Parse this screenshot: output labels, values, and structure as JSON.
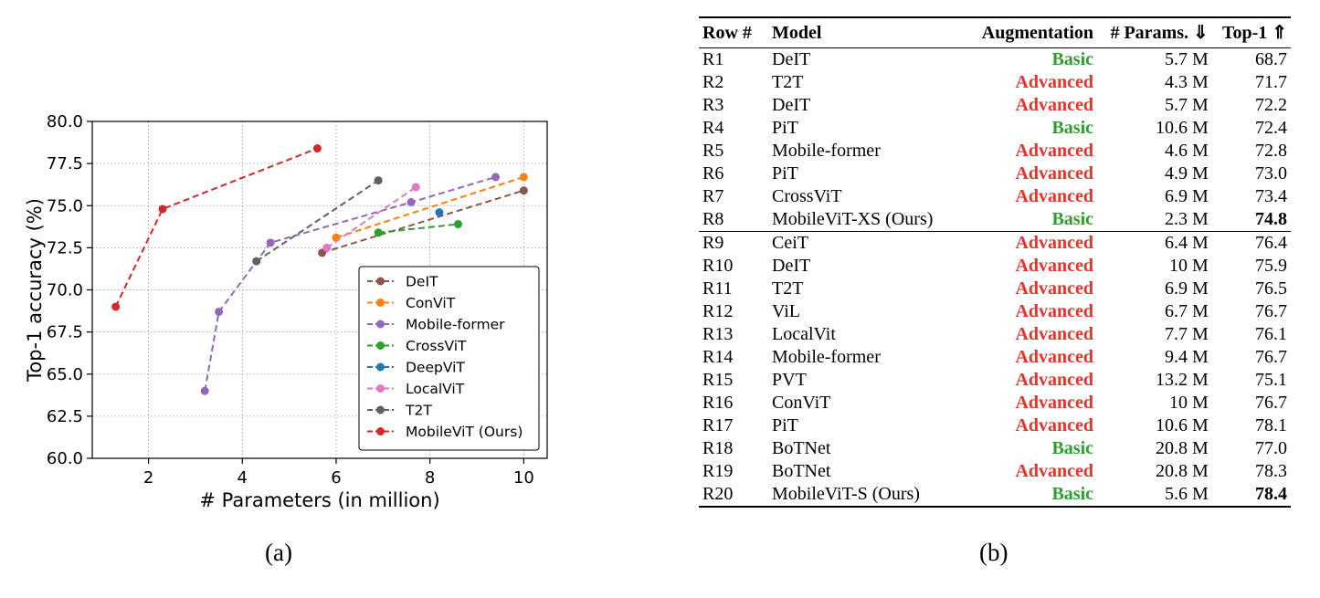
{
  "chart_data": {
    "type": "line",
    "xlabel": "# Parameters (in million)",
    "ylabel": "Top-1 accuracy (%)",
    "xlim": [
      0.8,
      10.5
    ],
    "ylim": [
      60.0,
      80.0
    ],
    "xticks": [
      2,
      4,
      6,
      8,
      10
    ],
    "yticks": [
      60.0,
      62.5,
      65.0,
      67.5,
      70.0,
      72.5,
      75.0,
      77.5,
      80.0
    ],
    "xtick_labels": [
      "2",
      "4",
      "6",
      "8",
      "10"
    ],
    "ytick_labels": [
      "60.0",
      "62.5",
      "65.0",
      "67.5",
      "70.0",
      "72.5",
      "75.0",
      "77.5",
      "80.0"
    ],
    "grid": true,
    "legend_position": "lower-right",
    "series": [
      {
        "name": "DeIT",
        "color": "#8c564b",
        "x": [
          5.7,
          10.0
        ],
        "y": [
          72.2,
          75.9
        ]
      },
      {
        "name": "ConViT",
        "color": "#ff7f0e",
        "x": [
          6.0,
          10.0
        ],
        "y": [
          73.1,
          76.7
        ]
      },
      {
        "name": "Mobile-former",
        "color": "#9467bd",
        "x": [
          3.2,
          3.5,
          4.6,
          7.6,
          9.4
        ],
        "y": [
          64.0,
          68.7,
          72.8,
          75.2,
          76.7
        ]
      },
      {
        "name": "CrossViT",
        "color": "#2ca02c",
        "x": [
          6.9,
          8.6
        ],
        "y": [
          73.4,
          73.9
        ]
      },
      {
        "name": "DeepViT",
        "color": "#1f77b4",
        "x": [
          8.2
        ],
        "y": [
          74.6
        ]
      },
      {
        "name": "LocalViT",
        "color": "#e377c2",
        "x": [
          5.8,
          7.7
        ],
        "y": [
          72.5,
          76.1
        ]
      },
      {
        "name": "T2T",
        "color": "#616161",
        "x": [
          4.3,
          6.9
        ],
        "y": [
          71.7,
          76.5
        ]
      },
      {
        "name": "MobileViT (Ours)",
        "color": "#d62728",
        "x": [
          1.3,
          2.3,
          5.6
        ],
        "y": [
          69.0,
          74.8,
          78.4
        ]
      }
    ]
  },
  "captions": {
    "a": "(a)",
    "b": "(b)"
  },
  "table": {
    "headers": {
      "row": "Row #",
      "model": "Model",
      "augmentation": "Augmentation",
      "params": "# Params. ⇓",
      "top1": "Top-1 ⇑"
    },
    "rows": [
      {
        "row": "R1",
        "model": "DeIT",
        "aug": "Basic",
        "params": "5.7 M",
        "top1": "68.7",
        "best": false
      },
      {
        "row": "R2",
        "model": "T2T",
        "aug": "Advanced",
        "params": "4.3 M",
        "top1": "71.7",
        "best": false
      },
      {
        "row": "R3",
        "model": "DeIT",
        "aug": "Advanced",
        "params": "5.7 M",
        "top1": "72.2",
        "best": false
      },
      {
        "row": "R4",
        "model": "PiT",
        "aug": "Basic",
        "params": "10.6 M",
        "top1": "72.4",
        "best": false
      },
      {
        "row": "R5",
        "model": "Mobile-former",
        "aug": "Advanced",
        "params": "4.6 M",
        "top1": "72.8",
        "best": false
      },
      {
        "row": "R6",
        "model": "PiT",
        "aug": "Advanced",
        "params": "4.9 M",
        "top1": "73.0",
        "best": false
      },
      {
        "row": "R7",
        "model": "CrossViT",
        "aug": "Advanced",
        "params": "6.9 M",
        "top1": "73.4",
        "best": false
      },
      {
        "row": "R8",
        "model": "MobileViT-XS (Ours)",
        "aug": "Basic",
        "params": "2.3 M",
        "top1": "74.8",
        "best": true
      },
      {
        "row": "R9",
        "model": "CeiT",
        "aug": "Advanced",
        "params": "6.4 M",
        "top1": "76.4",
        "best": false
      },
      {
        "row": "R10",
        "model": "DeIT",
        "aug": "Advanced",
        "params": "10 M",
        "top1": "75.9",
        "best": false
      },
      {
        "row": "R11",
        "model": "T2T",
        "aug": "Advanced",
        "params": "6.9 M",
        "top1": "76.5",
        "best": false
      },
      {
        "row": "R12",
        "model": "ViL",
        "aug": "Advanced",
        "params": "6.7 M",
        "top1": "76.7",
        "best": false
      },
      {
        "row": "R13",
        "model": "LocalVit",
        "aug": "Advanced",
        "params": "7.7 M",
        "top1": "76.1",
        "best": false
      },
      {
        "row": "R14",
        "model": "Mobile-former",
        "aug": "Advanced",
        "params": "9.4 M",
        "top1": "76.7",
        "best": false
      },
      {
        "row": "R15",
        "model": "PVT",
        "aug": "Advanced",
        "params": "13.2 M",
        "top1": "75.1",
        "best": false
      },
      {
        "row": "R16",
        "model": "ConViT",
        "aug": "Advanced",
        "params": "10 M",
        "top1": "76.7",
        "best": false
      },
      {
        "row": "R17",
        "model": "PiT",
        "aug": "Advanced",
        "params": "10.6 M",
        "top1": "78.1",
        "best": false
      },
      {
        "row": "R18",
        "model": "BoTNet",
        "aug": "Basic",
        "params": "20.8 M",
        "top1": "77.0",
        "best": false
      },
      {
        "row": "R19",
        "model": "BoTNet",
        "aug": "Advanced",
        "params": "20.8 M",
        "top1": "78.3",
        "best": false
      },
      {
        "row": "R20",
        "model": "MobileViT-S (Ours)",
        "aug": "Basic",
        "params": "5.6 M",
        "top1": "78.4",
        "best": true
      }
    ]
  },
  "colors": {
    "basic": "#2ca02c",
    "advanced": "#e8322a",
    "grid": "#b0b0b0"
  }
}
